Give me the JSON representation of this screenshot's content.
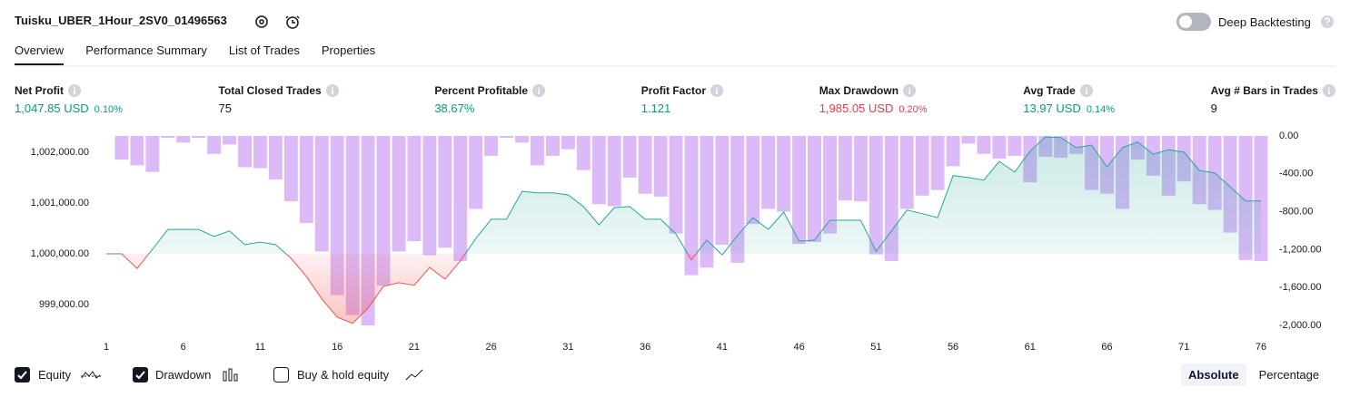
{
  "header": {
    "title": "Tuisku_UBER_1Hour_2SV0_01496563",
    "deep_backtesting": {
      "label": "Deep Backtesting",
      "enabled": false
    }
  },
  "tabs": {
    "items": [
      "Overview",
      "Performance Summary",
      "List of Trades",
      "Properties"
    ],
    "active": 0
  },
  "metrics": [
    {
      "label": "Net Profit",
      "value": "1,047.85 USD",
      "percent": "0.10%",
      "color": "#089981"
    },
    {
      "label": "Total Closed Trades",
      "value": "75",
      "color": "#131722"
    },
    {
      "label": "Percent Profitable",
      "value": "38.67%",
      "color": "#089981"
    },
    {
      "label": "Profit Factor",
      "value": "1.121",
      "color": "#089981"
    },
    {
      "label": "Max Drawdown",
      "value": "1,985.05 USD",
      "percent": "0.20%",
      "color": "#f23645"
    },
    {
      "label": "Avg Trade",
      "value": "13.97 USD",
      "percent": "0.14%",
      "color": "#089981"
    },
    {
      "label": "Avg # Bars in Trades",
      "value": "9",
      "color": "#131722"
    }
  ],
  "chart_data": {
    "type": "combo",
    "x": [
      1,
      2,
      3,
      4,
      5,
      6,
      7,
      8,
      9,
      10,
      11,
      12,
      13,
      14,
      15,
      16,
      17,
      18,
      19,
      20,
      21,
      22,
      23,
      24,
      25,
      26,
      27,
      28,
      29,
      30,
      31,
      32,
      33,
      34,
      35,
      36,
      37,
      38,
      39,
      40,
      41,
      42,
      43,
      44,
      45,
      46,
      47,
      48,
      49,
      50,
      51,
      52,
      53,
      54,
      55,
      56,
      57,
      58,
      59,
      60,
      61,
      62,
      63,
      64,
      65,
      66,
      67,
      68,
      69,
      70,
      71,
      72,
      73,
      74,
      75,
      76
    ],
    "xlim": [
      1,
      76
    ],
    "xticks": [
      1,
      6,
      11,
      16,
      21,
      26,
      31,
      36,
      41,
      46,
      51,
      56,
      61,
      66,
      71,
      76
    ],
    "ylim": [
      998590,
      1002320
    ],
    "yticks": [
      {
        "value": 1002000,
        "label": "1,002,000.00"
      },
      {
        "value": 1001000,
        "label": "1,001,000.00"
      },
      {
        "value": 1000000,
        "label": "1,000,000.00"
      },
      {
        "value": 999000,
        "label": "999,000.00"
      }
    ],
    "y2lim": [
      -2000,
      0
    ],
    "y2ticks": [
      {
        "value": 0,
        "label": "0.00"
      },
      {
        "value": -400,
        "label": "-400.00"
      },
      {
        "value": -800,
        "label": "-800.00"
      },
      {
        "value": -1200,
        "label": "-1,200.00"
      },
      {
        "value": -1600,
        "label": "-1,600.00"
      },
      {
        "value": -2000,
        "label": "-2,000.00"
      }
    ],
    "series": [
      {
        "name": "Drawdown",
        "type": "bar",
        "axis": "y2",
        "color": "#dcbaf8",
        "visible": true,
        "values": [
          0,
          -250,
          -310,
          -380,
          -20,
          -70,
          -20,
          -190,
          -90,
          -330,
          -340,
          -460,
          -690,
          -920,
          -1220,
          -1680,
          -1890,
          -2000,
          -1580,
          -1220,
          -1110,
          -1260,
          -1180,
          -1320,
          -770,
          -210,
          -20,
          -70,
          -310,
          -210,
          -140,
          -360,
          -720,
          -740,
          -440,
          -610,
          -640,
          -1030,
          -1470,
          -1390,
          -1150,
          -1340,
          -930,
          -770,
          -800,
          -1140,
          -1120,
          -1030,
          -680,
          -690,
          -1250,
          -1320,
          -770,
          -630,
          -570,
          -320,
          -80,
          -190,
          -240,
          -210,
          -490,
          -220,
          -230,
          -190,
          -570,
          -610,
          -770,
          -250,
          -420,
          -630,
          -480,
          -720,
          -780,
          -1020,
          -1310,
          -1320
        ]
      },
      {
        "name": "Equity",
        "type": "area",
        "color": "#26a69a",
        "negative_color": "#ef5350",
        "visible": true,
        "values": [
          1000000,
          1000000,
          999710,
          1000090,
          1000480,
          1000480,
          1000480,
          1000340,
          1000450,
          1000180,
          1000230,
          1000180,
          999910,
          999550,
          999110,
          998750,
          998630,
          998930,
          999360,
          999430,
          999380,
          999730,
          999500,
          999860,
          1000300,
          1000680,
          1000680,
          1001230,
          1001200,
          1001200,
          1001160,
          1000930,
          1000570,
          1000910,
          1000930,
          1000680,
          1000680,
          1000390,
          999880,
          1000270,
          999980,
          1000360,
          1000710,
          1000480,
          1000820,
          1000250,
          1000270,
          1000660,
          1000660,
          1000660,
          1000050,
          1000450,
          1000860,
          1000790,
          1000710,
          1001540,
          1001500,
          1001450,
          1001820,
          1001610,
          1002020,
          1002300,
          1002290,
          1002090,
          1002140,
          1001710,
          1002090,
          1002200,
          1001960,
          1002050,
          1002000,
          1001640,
          1001590,
          1001320,
          1001040,
          1001040
        ]
      }
    ]
  },
  "controls": {
    "buy_hold": {
      "label": "Buy & hold equity",
      "checked": false
    },
    "scale_modes": [
      "Absolute",
      "Percentage"
    ],
    "active_scale": 0
  }
}
